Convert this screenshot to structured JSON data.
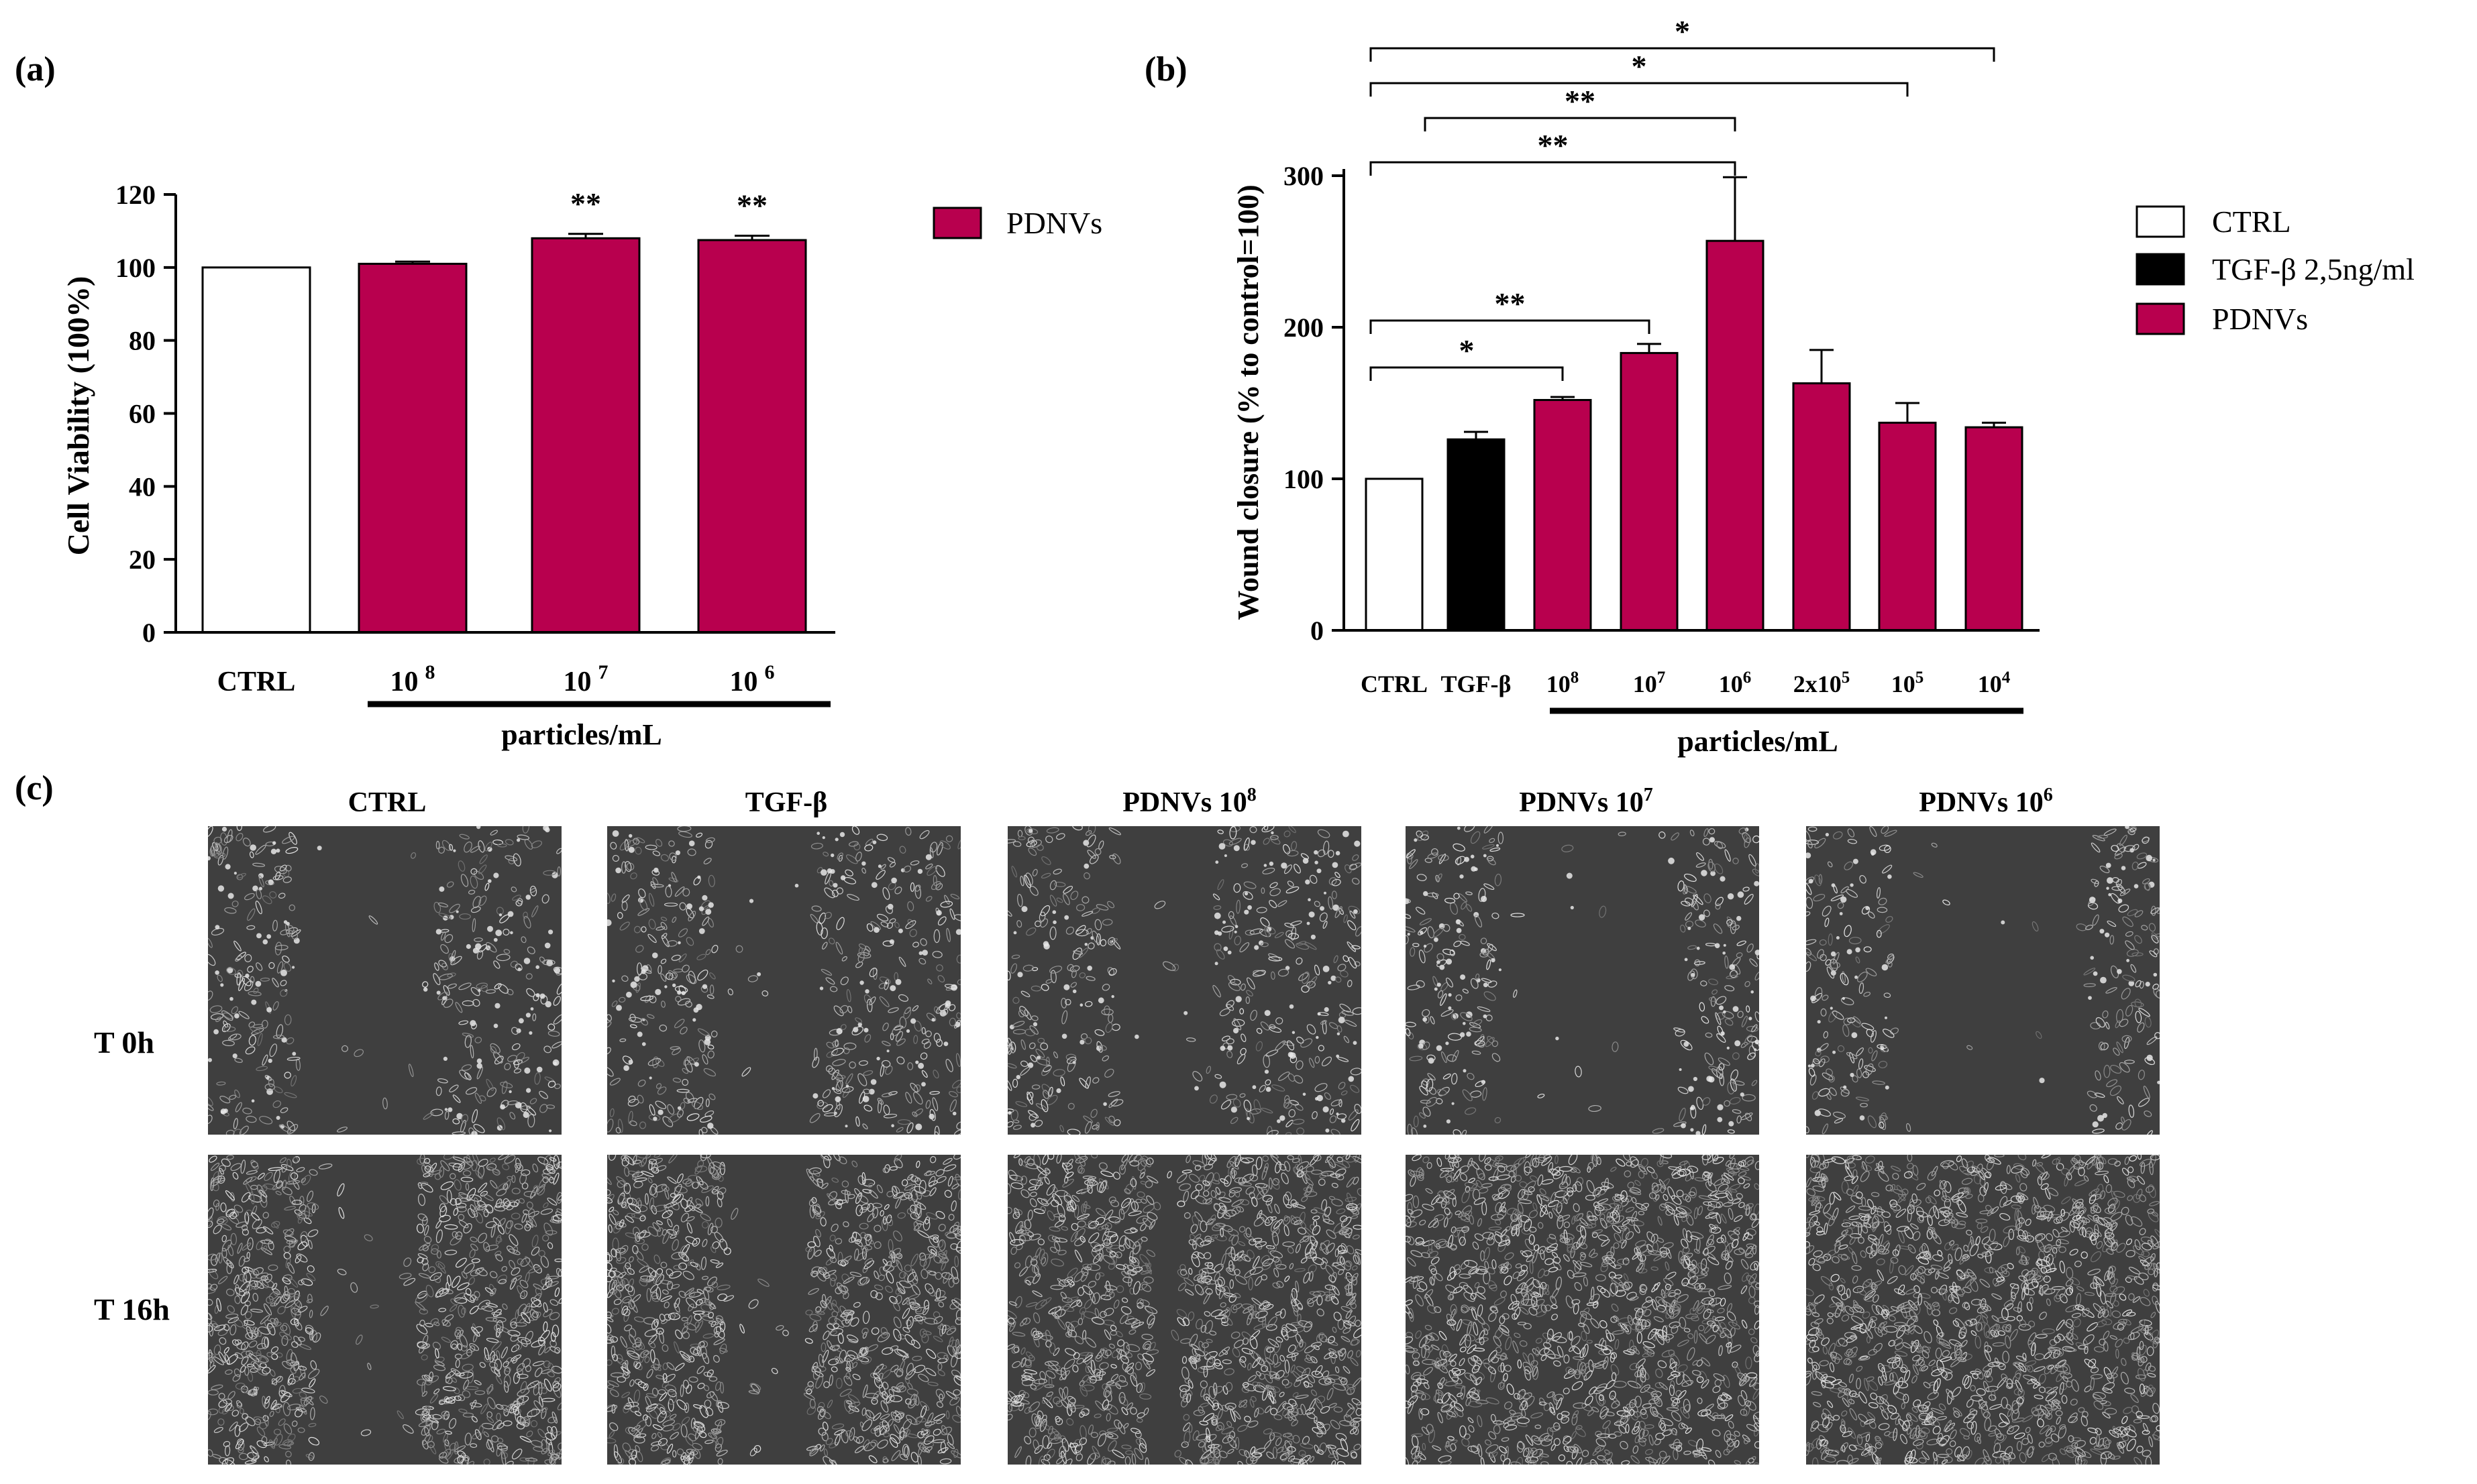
{
  "panel_a": {
    "label": "(a)",
    "legend": "PDNVs",
    "x_title": "particles/mL",
    "ctrl_label": "CTRL",
    "conc_bases": [
      "10",
      "10",
      "10"
    ],
    "conc_exps": [
      "8",
      "7",
      "6"
    ]
  },
  "panel_b": {
    "label": "(b)",
    "legend": [
      "CTRL",
      "TGF-β 2,5ng/ml",
      "PDNVs"
    ],
    "x_title": "particles/mL",
    "tick_ctrl": "CTRL",
    "tick_tgf": "TGF-β",
    "tick_bases": [
      "10",
      "10",
      "10",
      "2x10",
      "10",
      "10"
    ],
    "tick_exps": [
      "8",
      "7",
      "6",
      "5",
      "5",
      "4"
    ]
  },
  "panel_c": {
    "label": "(c)",
    "columns": [
      "CTRL",
      "TGF-β",
      "PDNVs 10",
      "PDNVs 10",
      "PDNVs 10"
    ],
    "column_exps": [
      "",
      "",
      "8",
      "7",
      "6"
    ],
    "rows": [
      "T 0h",
      "T 16h"
    ],
    "gap_fraction_t0": [
      0.39,
      0.27,
      0.28,
      0.5,
      0.56
    ],
    "gap_fraction_t16": [
      0.3,
      0.24,
      0.08,
      0.0,
      0.0
    ]
  },
  "colors": {
    "pdnv": "#b8004e",
    "tgf": "#000000",
    "ctrl": "#ffffff"
  },
  "chart_data": [
    {
      "type": "bar",
      "title": "",
      "xlabel": "particles/mL",
      "ylabel": "Cell Viability (100%)",
      "ylim": [
        0,
        120
      ],
      "yticks": [
        "0",
        "20",
        "40",
        "60",
        "80",
        "100",
        "120"
      ],
      "categories": [
        "CTRL",
        "10^8",
        "10^7",
        "10^6"
      ],
      "values": [
        100,
        101,
        108,
        107.5
      ],
      "errors": [
        0,
        0.6,
        1.2,
        1.2
      ],
      "series_kind": [
        "ctrl",
        "pdnv",
        "pdnv",
        "pdnv"
      ],
      "significance": [
        "",
        "",
        "**",
        "**"
      ]
    },
    {
      "type": "bar",
      "title": "",
      "xlabel": "particles/mL",
      "ylabel": "Wound closure (% to control=100)",
      "ylim": [
        0,
        300
      ],
      "yticks": [
        "0",
        "100",
        "200",
        "300"
      ],
      "categories": [
        "CTRL",
        "TGF-β",
        "10^8",
        "10^7",
        "10^6",
        "2x10^5",
        "10^5",
        "10^4"
      ],
      "values": [
        100,
        126,
        152,
        183,
        257,
        163,
        137,
        134
      ],
      "errors": [
        0,
        5,
        2,
        6,
        42,
        22,
        13,
        3
      ],
      "series_kind": [
        "ctrl",
        "tgf",
        "pdnv",
        "pdnv",
        "pdnv",
        "pdnv",
        "pdnv",
        "pdnv"
      ],
      "brackets": [
        {
          "from": 0,
          "to": 7,
          "label": "*"
        },
        {
          "from": 0,
          "to": 6,
          "label": "*"
        },
        {
          "from": 1,
          "to": 4,
          "label": "**"
        },
        {
          "from": 0,
          "to": 4,
          "label": "**"
        },
        {
          "from": 0,
          "to": 3,
          "label": "**"
        },
        {
          "from": 0,
          "to": 2,
          "label": "*"
        }
      ]
    }
  ]
}
